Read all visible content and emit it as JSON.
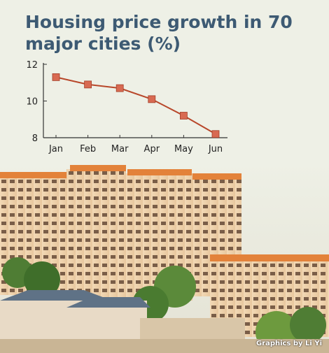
{
  "title": "Housing price growth in 70 major cities (%)",
  "credit": "Graphics by Li Yi",
  "colors": {
    "title": "#3d5a73",
    "line": "#b8472a",
    "marker": "#d86a52",
    "axis": "#333333"
  },
  "chart_data": {
    "type": "line",
    "title": "Housing price growth in 70 major cities (%)",
    "xlabel": "",
    "ylabel": "",
    "categories": [
      "Jan",
      "Feb",
      "Mar",
      "Apr",
      "May",
      "Jun"
    ],
    "values": [
      11.3,
      10.9,
      10.7,
      10.1,
      9.2,
      8.2
    ],
    "ylim": [
      8,
      12
    ],
    "yticks": [
      "12",
      "10",
      "8"
    ],
    "grid": false
  }
}
